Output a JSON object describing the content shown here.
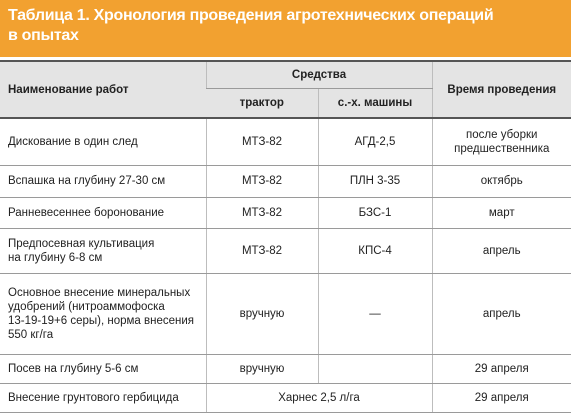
{
  "title": "Таблица 1. Хронология проведения агротехнических операций\nв опытах",
  "table": {
    "header": {
      "work": "Наименование работ",
      "means": "Средства",
      "tractor": "трактор",
      "machine": "с.-х. машины",
      "time": "Время проведения"
    },
    "rows": [
      {
        "work": "Дискование в один след",
        "tractor": "МТЗ-82",
        "machine": "АГД-2,5",
        "time": "после уборки\nпредшественника"
      },
      {
        "work": "Вспашка на глубину 27-30 см",
        "tractor": "МТЗ-82",
        "machine": "ПЛН 3-35",
        "time": "октябрь"
      },
      {
        "work": "Ранневесеннее боронование",
        "tractor": "МТЗ-82",
        "machine": "БЗС-1",
        "time": "март"
      },
      {
        "work": "Предпосевная культивация\nна глубину 6-8 см",
        "tractor": "МТЗ-82",
        "machine": "КПС-4",
        "time": "апрель"
      },
      {
        "work": "Основное внесение минеральных\nудобрений (нитроаммофоска\n13-19-19+6 серы), норма внесения\n550 кг/га",
        "tractor": "вручную",
        "machine": "—",
        "time": "апрель"
      },
      {
        "work": "Посев на глубину 5-6 см",
        "tractor": "вручную",
        "time": "29 апреля"
      },
      {
        "work": "Внесение грунтового гербицида",
        "means": "Харнес 2,5 л/га",
        "time": "29 апреля"
      }
    ]
  }
}
